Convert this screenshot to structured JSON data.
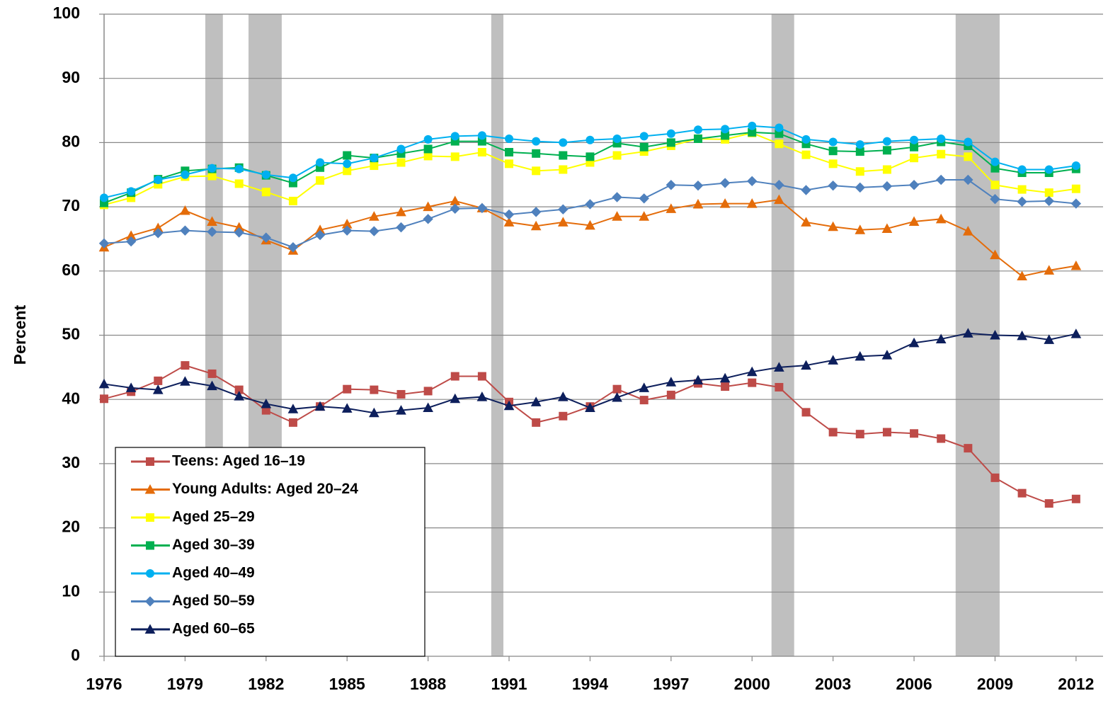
{
  "chart_data": {
    "type": "line",
    "y_label": "Percent",
    "x": [
      1976,
      1977,
      1978,
      1979,
      1980,
      1981,
      1982,
      1983,
      1984,
      1985,
      1986,
      1987,
      1988,
      1989,
      1990,
      1991,
      1992,
      1993,
      1994,
      1995,
      1996,
      1997,
      1998,
      1999,
      2000,
      2001,
      2002,
      2003,
      2004,
      2005,
      2006,
      2007,
      2008,
      2009,
      2010,
      2011,
      2012
    ],
    "xlim": [
      1976,
      2013
    ],
    "xticks": [
      1976,
      1979,
      1982,
      1985,
      1988,
      1991,
      1994,
      1997,
      2000,
      2003,
      2006,
      2009,
      2012
    ],
    "ylim": [
      0,
      100
    ],
    "yticks": [
      0,
      10,
      20,
      30,
      40,
      50,
      60,
      70,
      80,
      90,
      100
    ],
    "grid": true,
    "legend": "bottom-left",
    "shaded_x_ranges": [
      [
        1979.75,
        1980.4
      ],
      [
        1981.35,
        1982.58
      ],
      [
        1990.34,
        1990.79
      ],
      [
        2000.72,
        2001.56
      ],
      [
        2007.54,
        2009.17
      ]
    ],
    "shade_color": "#bfbfbf",
    "series": [
      {
        "name": "Teens: Aged 16–19",
        "color": "#be4b48",
        "marker": "square",
        "values": [
          40.1,
          41.2,
          42.9,
          45.3,
          44.0,
          41.5,
          38.3,
          36.4,
          38.9,
          41.6,
          41.5,
          40.8,
          41.3,
          43.6,
          43.6,
          39.6,
          36.4,
          37.4,
          38.9,
          41.6,
          39.9,
          40.7,
          42.5,
          42.0,
          42.6,
          41.9,
          38.0,
          34.9,
          34.6,
          34.9,
          34.7,
          33.9,
          32.4,
          27.8,
          25.4,
          23.8,
          24.5
        ]
      },
      {
        "name": "Young Adults: Aged 20–24",
        "color": "#e46c0a",
        "marker": "triangle",
        "values": [
          63.7,
          65.5,
          66.7,
          69.4,
          67.7,
          66.8,
          64.8,
          63.2,
          66.4,
          67.3,
          68.5,
          69.2,
          70.0,
          70.9,
          69.8,
          67.6,
          67.0,
          67.6,
          67.1,
          68.5,
          68.5,
          69.7,
          70.4,
          70.5,
          70.5,
          71.1,
          67.6,
          66.9,
          66.4,
          66.6,
          67.7,
          68.1,
          66.2,
          62.5,
          59.2,
          60.1,
          60.8
        ]
      },
      {
        "name": "Aged 25–29",
        "color": "#ffff00",
        "marker": "square",
        "values": [
          70.3,
          71.4,
          73.5,
          74.7,
          74.8,
          73.6,
          72.3,
          70.9,
          74.1,
          75.6,
          76.4,
          76.9,
          77.9,
          77.8,
          78.5,
          76.7,
          75.6,
          75.8,
          76.9,
          78.0,
          78.6,
          79.5,
          80.6,
          80.5,
          81.5,
          79.8,
          78.1,
          76.7,
          75.5,
          75.8,
          77.6,
          78.2,
          77.8,
          73.4,
          72.7,
          72.2,
          72.8
        ]
      },
      {
        "name": "Aged 30–39",
        "color": "#00b050",
        "marker": "square",
        "values": [
          70.6,
          72.2,
          74.3,
          75.6,
          75.9,
          76.1,
          74.9,
          73.7,
          76.1,
          78.0,
          77.6,
          78.3,
          79.0,
          80.2,
          80.2,
          78.5,
          78.3,
          78.0,
          77.8,
          79.9,
          79.3,
          80.0,
          80.6,
          81.1,
          81.6,
          81.4,
          79.8,
          78.7,
          78.6,
          78.8,
          79.3,
          80.1,
          79.5,
          76.0,
          75.3,
          75.3,
          75.9
        ]
      },
      {
        "name": "Aged 40–49",
        "color": "#00b0f0",
        "marker": "circle",
        "values": [
          71.4,
          72.4,
          74.2,
          75.0,
          76.0,
          75.9,
          75.0,
          74.5,
          76.9,
          76.7,
          77.6,
          79.0,
          80.5,
          81.0,
          81.1,
          80.6,
          80.2,
          80.0,
          80.4,
          80.6,
          81.0,
          81.4,
          82.0,
          82.1,
          82.6,
          82.3,
          80.5,
          80.1,
          79.7,
          80.2,
          80.4,
          80.6,
          80.1,
          77.0,
          75.8,
          75.8,
          76.4
        ]
      },
      {
        "name": "Aged 50–59",
        "color": "#4f81bd",
        "marker": "diamond",
        "values": [
          64.3,
          64.6,
          65.9,
          66.3,
          66.1,
          66.0,
          65.2,
          63.7,
          65.6,
          66.3,
          66.2,
          66.8,
          68.1,
          69.7,
          69.8,
          68.8,
          69.2,
          69.6,
          70.4,
          71.5,
          71.3,
          73.4,
          73.3,
          73.7,
          74.0,
          73.4,
          72.6,
          73.3,
          73.0,
          73.2,
          73.4,
          74.2,
          74.2,
          71.2,
          70.8,
          70.9,
          70.5
        ]
      },
      {
        "name": "Aged 60–65",
        "color": "#0d1f5c",
        "marker": "triangle",
        "values": [
          42.4,
          41.8,
          41.5,
          42.8,
          42.1,
          40.5,
          39.3,
          38.5,
          38.9,
          38.6,
          37.9,
          38.3,
          38.7,
          40.1,
          40.4,
          39.0,
          39.6,
          40.4,
          38.7,
          40.3,
          41.8,
          42.7,
          43.0,
          43.3,
          44.3,
          45.0,
          45.3,
          46.1,
          46.7,
          46.9,
          48.8,
          49.4,
          50.3,
          50.0,
          49.9,
          49.3,
          50.2
        ]
      }
    ]
  }
}
